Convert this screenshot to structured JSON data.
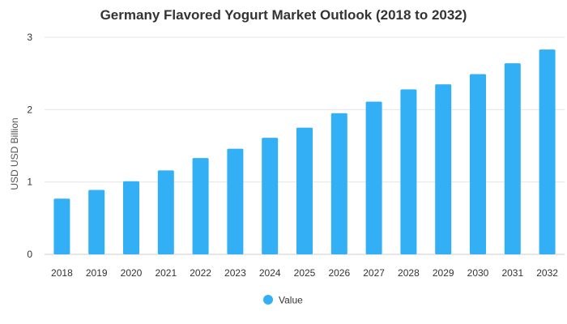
{
  "chart_data": {
    "type": "bar",
    "title": "Germany Flavored Yogurt Market Outlook (2018 to 2032)",
    "xlabel": "",
    "ylabel": "USD USD Billion",
    "categories": [
      "2018",
      "2019",
      "2020",
      "2021",
      "2022",
      "2023",
      "2024",
      "2025",
      "2026",
      "2027",
      "2028",
      "2029",
      "2030",
      "2031",
      "2032"
    ],
    "series": [
      {
        "name": "Value",
        "values": [
          0.77,
          0.89,
          1.01,
          1.16,
          1.33,
          1.46,
          1.61,
          1.75,
          1.95,
          2.11,
          2.28,
          2.35,
          2.49,
          2.64,
          2.83
        ],
        "color": "#33b0f5"
      }
    ],
    "ylim": [
      0,
      3
    ],
    "yticks": [
      "0",
      "1",
      "2",
      "3"
    ],
    "grid": true,
    "legend_position": "bottom-center"
  }
}
